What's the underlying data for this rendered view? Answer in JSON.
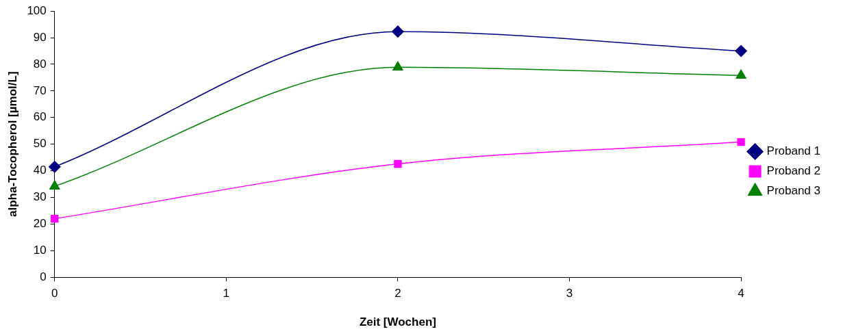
{
  "chart_data": {
    "type": "line",
    "xlabel": "Zeit [Wochen]",
    "ylabel": "alpha-Tocopherol [µmol/L]",
    "x": [
      0,
      2,
      4
    ],
    "xlim": [
      0,
      4
    ],
    "xticks": [
      0,
      1,
      2,
      3,
      4
    ],
    "ylim": [
      0,
      100
    ],
    "yticks": [
      0,
      10,
      20,
      30,
      40,
      50,
      60,
      70,
      80,
      90,
      100
    ],
    "grid": false,
    "legend": "right",
    "line_style": "solid",
    "series": [
      {
        "name": "Proband 1",
        "color": "#000080",
        "marker": "diamond",
        "values": [
          41.5,
          92.3,
          85
        ]
      },
      {
        "name": "Proband 2",
        "color": "#ff00ff",
        "marker": "square",
        "values": [
          22,
          42.6,
          50.8
        ]
      },
      {
        "name": "Proband 3",
        "color": "#008000",
        "marker": "triangle",
        "values": [
          34.2,
          78.9,
          75.8
        ]
      }
    ]
  }
}
